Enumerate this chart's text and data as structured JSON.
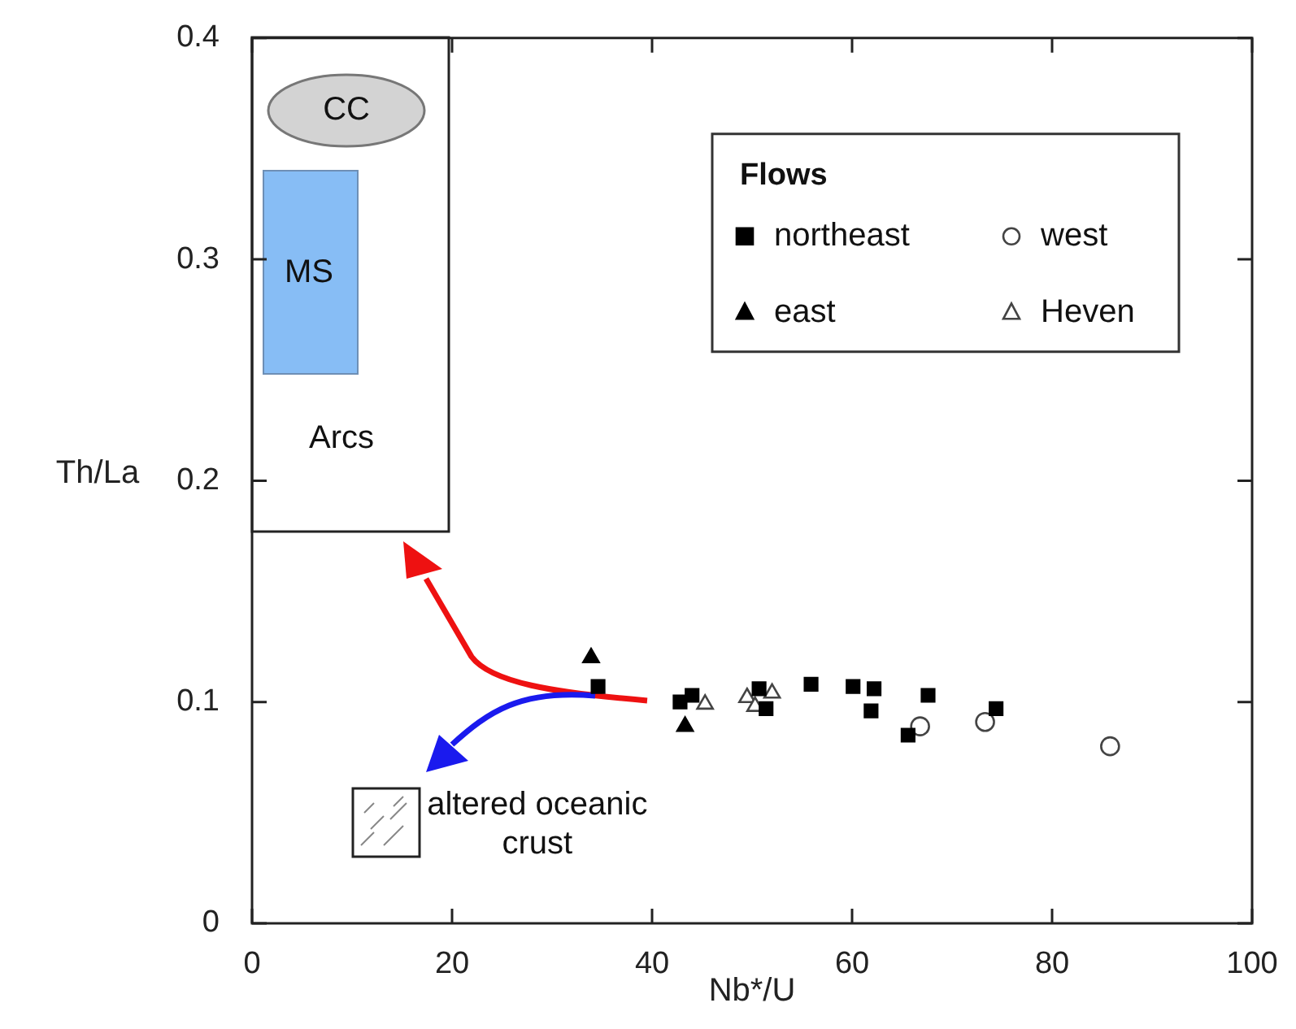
{
  "chart_data": {
    "type": "scatter",
    "xlabel": "Nb*/U",
    "ylabel": "Th/La",
    "legend_title": "Flows",
    "legend": "top right",
    "grid": false,
    "xlim": [
      0,
      100
    ],
    "xticks": [
      0,
      20,
      40,
      60,
      80,
      100
    ],
    "ylim": [
      0,
      0.4
    ],
    "yticks": [
      0,
      0.1,
      0.2,
      0.3,
      0.4
    ],
    "series": [
      {
        "name": "northeast",
        "color": "#000000",
        "marker": "square",
        "x": [
          34.6,
          42.8,
          44.0,
          50.7,
          51.4,
          55.9,
          60.1,
          62.2,
          61.9,
          67.6,
          65.6,
          74.4
        ],
        "values": [
          0.107,
          0.1,
          0.103,
          0.106,
          0.097,
          0.108,
          0.107,
          0.106,
          0.096,
          0.103,
          0.085,
          0.097
        ]
      },
      {
        "name": "west",
        "color": "#ffffff",
        "marker": "circle",
        "x": [
          66.8,
          73.3,
          85.8
        ],
        "values": [
          0.089,
          0.091,
          0.08
        ]
      },
      {
        "name": "east",
        "color": "#000000",
        "marker": "triangle",
        "x": [
          33.9,
          43.3
        ],
        "values": [
          0.12,
          0.089
        ]
      },
      {
        "name": "Heven",
        "color": "#ffffff",
        "marker": "triangle",
        "x": [
          45.3,
          49.5,
          50.3,
          52.0
        ],
        "values": [
          0.099,
          0.102,
          0.098,
          0.104
        ]
      }
    ],
    "annotations": [
      "CC",
      "MS",
      "Arcs",
      {
        "text": "altered oceanic crust",
        "x": 13.4,
        "y": 0.045
      }
    ]
  }
}
